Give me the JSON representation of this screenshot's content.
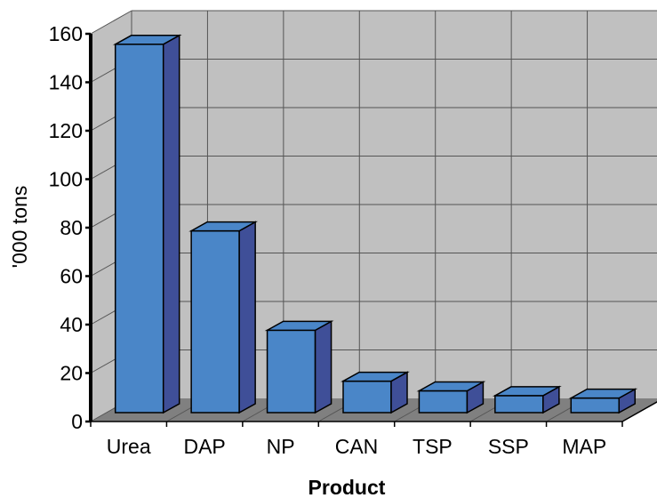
{
  "chart_data": {
    "type": "bar",
    "style": "3d-column",
    "categories": [
      "Urea",
      "DAP",
      "NP",
      "CAN",
      "TSP",
      "SSP",
      "MAP"
    ],
    "values": [
      152,
      75,
      34,
      13,
      9,
      7,
      6
    ],
    "title": "",
    "xlabel": "Product",
    "ylabel": "'000 tons",
    "ylim": [
      0,
      160
    ],
    "yticks": [
      "0",
      "20",
      "40",
      "60",
      "80",
      "100",
      "120",
      "140",
      "160"
    ],
    "grid": true,
    "legend": "none",
    "colors": {
      "bar_front": "#4a86c8",
      "bar_side": "#3f4f98",
      "bar_top": "#4a86c8",
      "wall": "#c0c0c0",
      "floor": "#808080",
      "grid": "#555555"
    }
  }
}
